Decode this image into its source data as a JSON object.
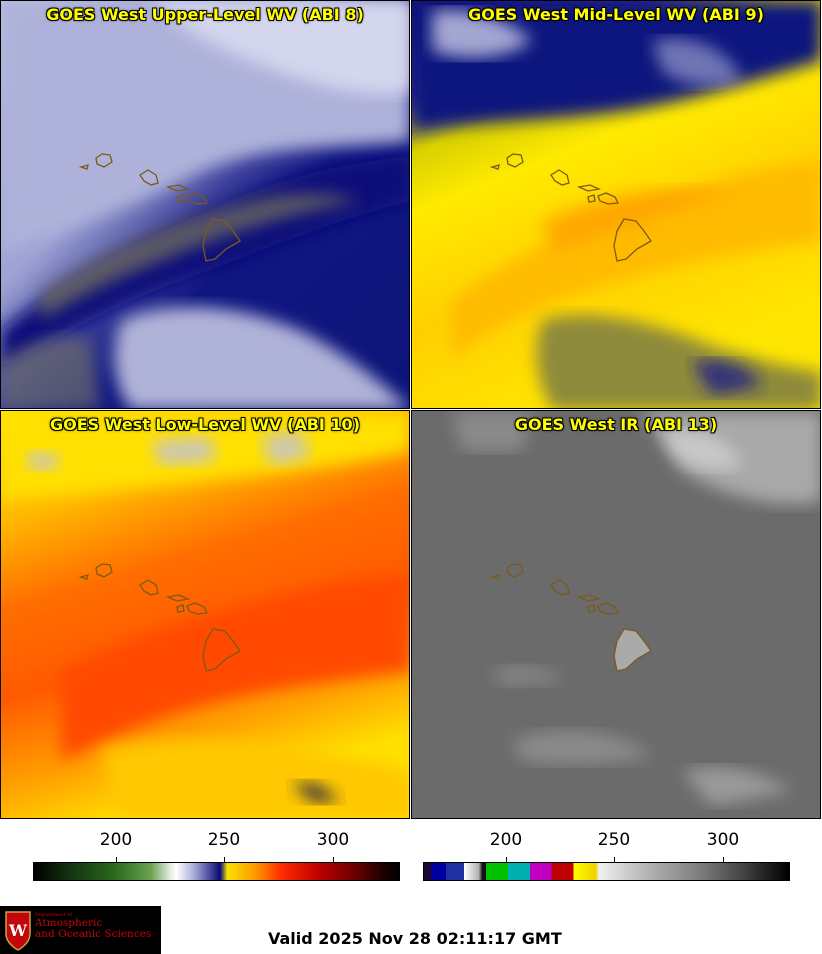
{
  "panels": [
    {
      "id": "p1",
      "title": "GOES West Upper-Level WV (ABI 8)",
      "colorscheme": "upper-wv"
    },
    {
      "id": "p2",
      "title": "GOES West Mid-Level WV (ABI 9)",
      "colorscheme": "mid-wv"
    },
    {
      "id": "p3",
      "title": "GOES West Low-Level WV (ABI 10)",
      "colorscheme": "low-wv"
    },
    {
      "id": "p4",
      "title": "GOES West IR (ABI 13)",
      "colorscheme": "ir"
    }
  ],
  "colorbars": [
    {
      "name": "wv-colorbar",
      "ticks": [
        "200",
        "250",
        "300"
      ]
    },
    {
      "name": "ir-colorbar",
      "ticks": [
        "200",
        "250",
        "300"
      ]
    }
  ],
  "logo": {
    "line1": "Department of",
    "line2": "Atmospheric",
    "line3": "and Oceanic Sciences",
    "mark": "W"
  },
  "valid_time": "Valid 2025 Nov 28 02:11:17 GMT",
  "colors": {
    "title_text": "#ffff00",
    "coastline": "#7a5a1a",
    "uw_red": "#c5050c"
  }
}
